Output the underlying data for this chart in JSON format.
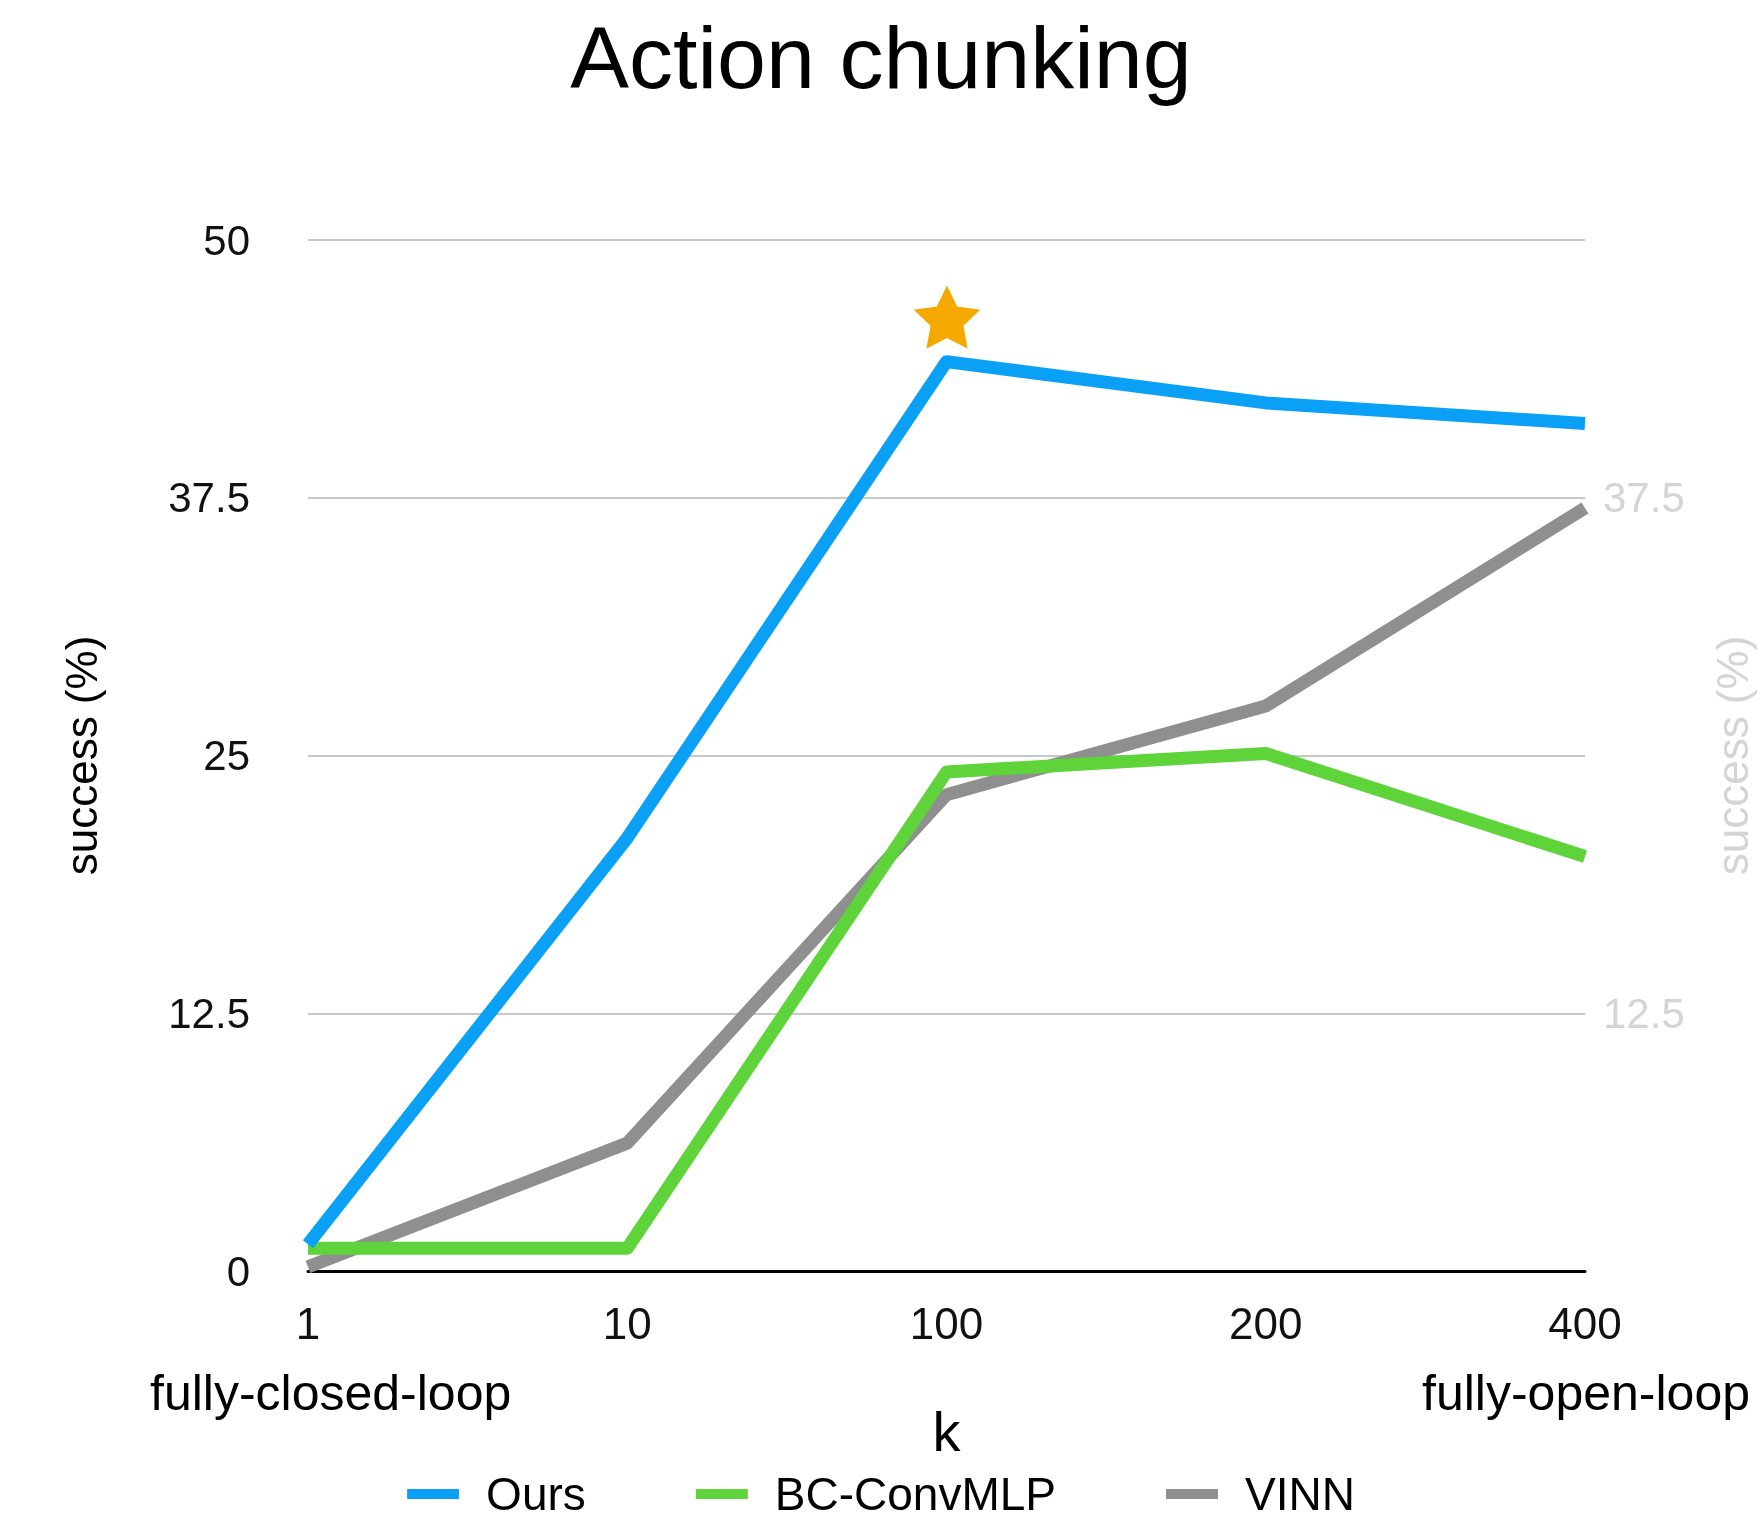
{
  "chart_data": {
    "type": "line",
    "title": "Action chunking",
    "xlabel": "k",
    "ylabel": "success (%)",
    "y2label": "success (%)",
    "categories": [
      "1",
      "10",
      "100",
      "200",
      "400"
    ],
    "series": [
      {
        "name": "Ours",
        "color": "#0aa0f5",
        "values": [
          1.3,
          21.0,
          44.1,
          42.1,
          41.1
        ]
      },
      {
        "name": "BC-ConvMLP",
        "color": "#5ed43a",
        "values": [
          1.1,
          1.1,
          24.2,
          25.1,
          20.1
        ]
      },
      {
        "name": "VINN",
        "color": "#8f8f8f",
        "values": [
          0.2,
          6.2,
          23.1,
          27.4,
          37.0
        ]
      }
    ],
    "ylim": [
      0,
      50
    ],
    "yticks": [
      0,
      12.5,
      25,
      37.5,
      50
    ],
    "y2lim": [
      0,
      50
    ],
    "y2ticks": [
      12.5,
      37.5
    ],
    "annotations": [
      "fully-closed-loop",
      "fully-open-loop"
    ],
    "grid": "y",
    "legend": "bottom",
    "marker": "none",
    "line_style": "solid"
  }
}
